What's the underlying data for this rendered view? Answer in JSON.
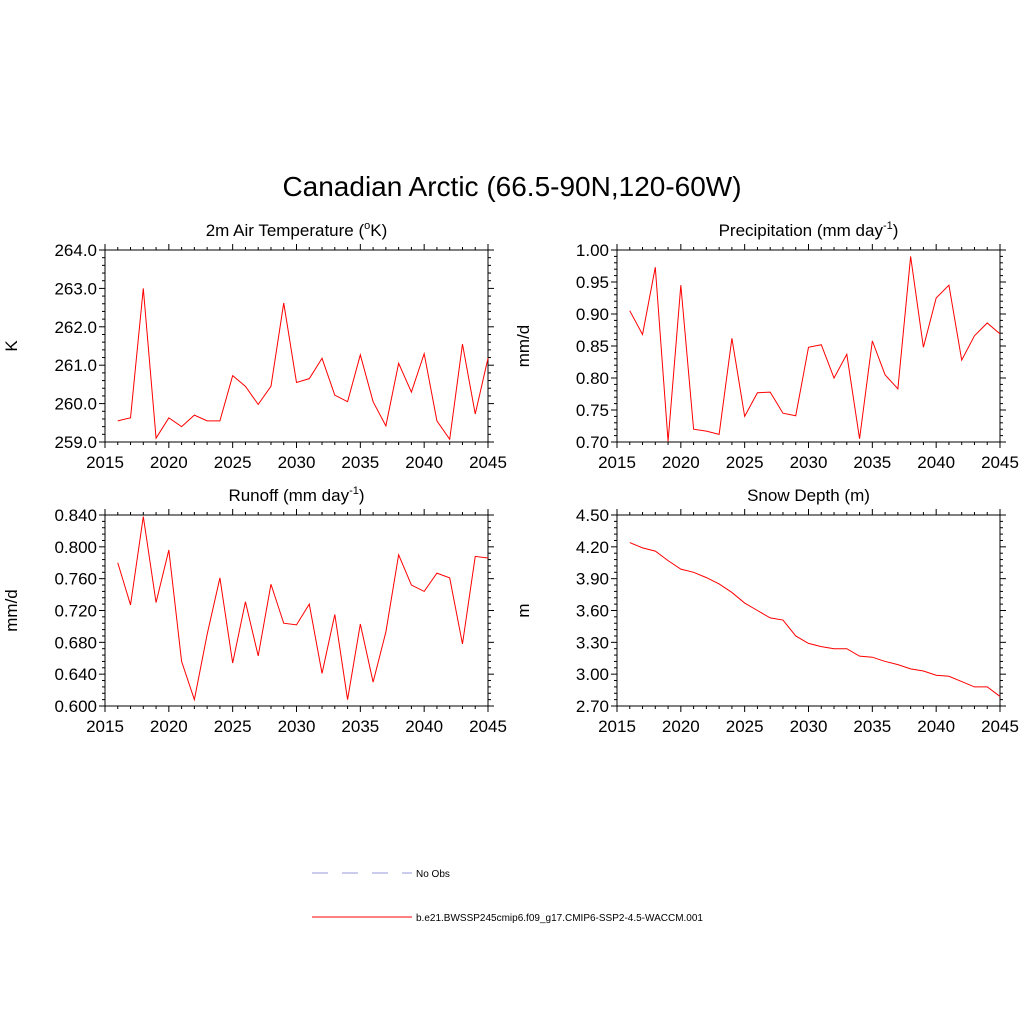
{
  "main_title": "Canadian Arctic (66.5-90N,120-60W)",
  "series_color": "#ff0000",
  "obs_color": "#9999dd",
  "legend": {
    "obs_label": "No Obs",
    "model_label": "b.e21.BWSSP245cmip6.f09_g17.CMIP6-SSP2-4.5-WACCM.001"
  },
  "chart_data": [
    {
      "type": "line",
      "title_parts": [
        "2m Air Temperature (",
        "o",
        "K)"
      ],
      "ylabel": "K",
      "xlabel": "",
      "xlim": [
        2015,
        2045
      ],
      "ylim": [
        259.0,
        264.0
      ],
      "xticks": [
        "2015",
        "2020",
        "2025",
        "2030",
        "2035",
        "2040",
        "2045"
      ],
      "yticks": [
        "259.0",
        "260.0",
        "261.0",
        "262.0",
        "263.0",
        "264.0"
      ],
      "x": [
        2016,
        2017,
        2018,
        2019,
        2020,
        2021,
        2022,
        2023,
        2024,
        2025,
        2026,
        2027,
        2028,
        2029,
        2030,
        2031,
        2032,
        2033,
        2034,
        2035,
        2036,
        2037,
        2038,
        2039,
        2040,
        2041,
        2042,
        2043,
        2044,
        2045
      ],
      "values": [
        259.55,
        259.63,
        263.0,
        259.1,
        259.63,
        259.4,
        259.7,
        259.55,
        259.55,
        260.73,
        260.45,
        259.98,
        260.45,
        262.62,
        260.55,
        260.65,
        261.18,
        260.22,
        260.05,
        261.27,
        260.05,
        259.42,
        261.05,
        260.3,
        261.3,
        259.55,
        259.07,
        261.55,
        259.73,
        261.18
      ]
    },
    {
      "type": "line",
      "title_parts": [
        "Precipitation (mm day",
        "-1",
        ")"
      ],
      "ylabel": "mm/d",
      "xlabel": "",
      "xlim": [
        2015,
        2045
      ],
      "ylim": [
        0.7,
        1.0
      ],
      "xticks": [
        "2015",
        "2020",
        "2025",
        "2030",
        "2035",
        "2040",
        "2045"
      ],
      "yticks": [
        "0.70",
        "0.75",
        "0.80",
        "0.85",
        "0.90",
        "0.95",
        "1.00"
      ],
      "x": [
        2016,
        2017,
        2018,
        2019,
        2020,
        2021,
        2022,
        2023,
        2024,
        2025,
        2026,
        2027,
        2028,
        2029,
        2030,
        2031,
        2032,
        2033,
        2034,
        2035,
        2036,
        2037,
        2038,
        2039,
        2040,
        2041,
        2042,
        2043,
        2044,
        2045
      ],
      "values": [
        0.905,
        0.868,
        0.973,
        0.701,
        0.945,
        0.72,
        0.717,
        0.712,
        0.862,
        0.74,
        0.777,
        0.778,
        0.745,
        0.741,
        0.848,
        0.852,
        0.8,
        0.837,
        0.705,
        0.858,
        0.805,
        0.783,
        0.99,
        0.848,
        0.925,
        0.945,
        0.828,
        0.866,
        0.886,
        0.869
      ]
    },
    {
      "type": "line",
      "title_parts": [
        "Runoff (mm day",
        "-1",
        ")"
      ],
      "ylabel": "mm/d",
      "xlabel": "",
      "xlim": [
        2015,
        2045
      ],
      "ylim": [
        0.6,
        0.84
      ],
      "xticks": [
        "2015",
        "2020",
        "2025",
        "2030",
        "2035",
        "2040",
        "2045"
      ],
      "yticks": [
        "0.600",
        "0.640",
        "0.680",
        "0.720",
        "0.760",
        "0.800",
        "0.840"
      ],
      "x": [
        2016,
        2017,
        2018,
        2019,
        2020,
        2021,
        2022,
        2023,
        2024,
        2025,
        2026,
        2027,
        2028,
        2029,
        2030,
        2031,
        2032,
        2033,
        2034,
        2035,
        2036,
        2037,
        2038,
        2039,
        2040,
        2041,
        2042,
        2043,
        2044,
        2045
      ],
      "values": [
        0.78,
        0.727,
        0.838,
        0.73,
        0.796,
        0.656,
        0.608,
        0.69,
        0.761,
        0.654,
        0.731,
        0.663,
        0.753,
        0.704,
        0.702,
        0.728,
        0.641,
        0.715,
        0.608,
        0.703,
        0.63,
        0.693,
        0.79,
        0.752,
        0.744,
        0.767,
        0.761,
        0.678,
        0.788,
        0.786
      ]
    },
    {
      "type": "line",
      "title_parts": [
        "Snow Depth (m)"
      ],
      "ylabel": "m",
      "xlabel": "",
      "xlim": [
        2015,
        2045
      ],
      "ylim": [
        2.7,
        4.5
      ],
      "xticks": [
        "2015",
        "2020",
        "2025",
        "2030",
        "2035",
        "2040",
        "2045"
      ],
      "yticks": [
        "2.70",
        "3.00",
        "3.30",
        "3.60",
        "3.90",
        "4.20",
        "4.50"
      ],
      "x": [
        2016,
        2017,
        2018,
        2019,
        2020,
        2021,
        2022,
        2023,
        2024,
        2025,
        2026,
        2027,
        2028,
        2029,
        2030,
        2031,
        2032,
        2033,
        2034,
        2035,
        2036,
        2037,
        2038,
        2039,
        2040,
        2041,
        2042,
        2043,
        2044,
        2045
      ],
      "values": [
        4.24,
        4.19,
        4.16,
        4.07,
        3.99,
        3.96,
        3.91,
        3.85,
        3.77,
        3.67,
        3.6,
        3.53,
        3.51,
        3.36,
        3.29,
        3.26,
        3.24,
        3.24,
        3.17,
        3.16,
        3.12,
        3.09,
        3.05,
        3.03,
        2.99,
        2.98,
        2.93,
        2.88,
        2.88,
        2.79
      ]
    }
  ]
}
